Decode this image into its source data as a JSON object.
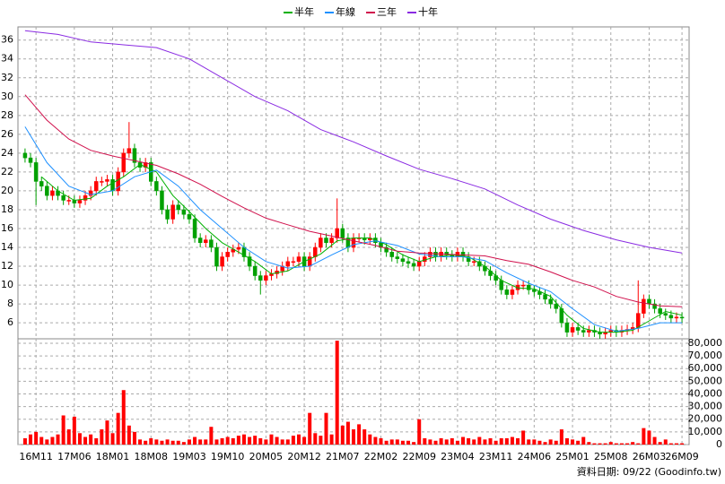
{
  "chart_data": {
    "type": "candlestick",
    "up_color": "#ff0000",
    "down_color": "#00a000",
    "xlim": [
      -1.3,
      121.3
    ],
    "xticks": [
      {
        "value": 2,
        "label": "16M11"
      },
      {
        "value": 9,
        "label": "17M06"
      },
      {
        "value": 16,
        "label": "18M01"
      },
      {
        "value": 23,
        "label": "18M08"
      },
      {
        "value": 30,
        "label": "19M03"
      },
      {
        "value": 37,
        "label": "19M10"
      },
      {
        "value": 44,
        "label": "20M05"
      },
      {
        "value": 51,
        "label": "20M12"
      },
      {
        "value": 58,
        "label": "21M07"
      },
      {
        "value": 65,
        "label": "22M02"
      },
      {
        "value": 72,
        "label": "22M09"
      },
      {
        "value": 79,
        "label": "23M04"
      },
      {
        "value": 86,
        "label": "23M11"
      },
      {
        "value": 93,
        "label": "24M06"
      },
      {
        "value": 100,
        "label": "25M01"
      },
      {
        "value": 107,
        "label": "25M08"
      },
      {
        "value": 114,
        "label": "26M03"
      },
      {
        "value": 120,
        "label": "26M09"
      }
    ],
    "ylim": [
      4.3,
      37.4
    ],
    "yticks": [
      6,
      8,
      10,
      12,
      14,
      16,
      18,
      20,
      22,
      24,
      26,
      28,
      30,
      32,
      34,
      36
    ],
    "grid": true,
    "candles": {
      "open": [
        24,
        23.5,
        23,
        21,
        20.5,
        19.5,
        20,
        19.5,
        19,
        19,
        18.7,
        19,
        19.5,
        20,
        21,
        21,
        21.2,
        20,
        22,
        24,
        24.5,
        23,
        22.5,
        23,
        21,
        20,
        18,
        17,
        18.5,
        18,
        17.5,
        17,
        15,
        14.5,
        14.8,
        14,
        12,
        13,
        13.5,
        13.8,
        14,
        13,
        12,
        11,
        10.5,
        11,
        11.2,
        11.5,
        12,
        12.5,
        12.5,
        13,
        12,
        13,
        14,
        15,
        14.5,
        15,
        16,
        15,
        14,
        15,
        15,
        14.8,
        15,
        14.5,
        14,
        13.5,
        13,
        12.8,
        12.5,
        12.3,
        12,
        12.5,
        13,
        13.5,
        13,
        13.5,
        13.2,
        13,
        13.5,
        13,
        12.5,
        12.5,
        12,
        11.5,
        11,
        10.5,
        9.5,
        9,
        9.5,
        10,
        10,
        9.5,
        9.3,
        9,
        8.5,
        8,
        7.5,
        6,
        5,
        5.5,
        5.2,
        5,
        5.2,
        5,
        4.8,
        5,
        5.2,
        5,
        5.2,
        5.3,
        5.5,
        7,
        8.5,
        8,
        7.5,
        7,
        6.8,
        6.5,
        6.6
      ],
      "high": [
        24.5,
        24,
        23.5,
        21.5,
        21,
        20.5,
        20.5,
        20,
        19.5,
        19.5,
        19.5,
        20,
        20.5,
        21.5,
        21.5,
        21.7,
        21.7,
        22.5,
        24.5,
        27.3,
        25,
        23.5,
        23.5,
        23.5,
        21.5,
        20.5,
        18.5,
        19,
        19,
        18.5,
        18,
        17.5,
        15.5,
        15.3,
        15.3,
        14.5,
        13.5,
        14,
        14.3,
        14.5,
        14.5,
        13.5,
        12.5,
        11.5,
        11.5,
        11.7,
        12,
        12.5,
        13,
        13,
        13.5,
        13.5,
        13.5,
        14.5,
        15.5,
        15.5,
        15.5,
        19.2,
        16.5,
        15.5,
        15.5,
        15.5,
        15.5,
        15.5,
        15.5,
        15,
        14.5,
        14,
        13.5,
        13.3,
        13,
        12.8,
        13,
        13.5,
        14,
        14,
        14,
        14,
        13.7,
        14,
        14,
        13.5,
        13,
        13,
        12.5,
        12,
        11.5,
        11,
        10,
        10,
        10.5,
        10.5,
        10.5,
        10,
        9.8,
        9.5,
        9,
        8.5,
        8,
        6.5,
        6,
        6,
        5.7,
        5.7,
        5.7,
        5.5,
        5.5,
        5.7,
        5.7,
        5.7,
        5.8,
        6,
        10.5,
        9,
        9,
        8.5,
        8,
        7.5,
        7.3,
        7.1,
        7.1
      ],
      "low": [
        23,
        22.5,
        18.5,
        20,
        19,
        19,
        19,
        18.5,
        18.5,
        18.2,
        18.2,
        18.5,
        19,
        19.5,
        20.5,
        20.5,
        19.5,
        19.5,
        21.5,
        23.5,
        22.5,
        22,
        22,
        20.5,
        19.5,
        17.5,
        16.5,
        16.5,
        17.5,
        17,
        16.5,
        14.5,
        14,
        14,
        13.5,
        11.5,
        11.5,
        12.5,
        13,
        13.3,
        12.5,
        11.5,
        10.5,
        9,
        10,
        10.5,
        10.7,
        11,
        11.5,
        12,
        12,
        11.5,
        11.5,
        12.5,
        13.5,
        14,
        14,
        14.5,
        14.5,
        13.5,
        13.5,
        14.5,
        14.3,
        14.3,
        14,
        13.5,
        13,
        12.5,
        12.3,
        12,
        11.8,
        11.5,
        11.5,
        12,
        12.5,
        12.5,
        12.5,
        12.7,
        12.5,
        12.5,
        12.5,
        12,
        12,
        11.5,
        11,
        10.5,
        10,
        9,
        8.5,
        8.5,
        9,
        9.5,
        9,
        8.8,
        8.5,
        8,
        7.5,
        7,
        5.5,
        4.5,
        4.5,
        4.7,
        4.5,
        4.5,
        4.5,
        4.3,
        4.3,
        4.5,
        4.5,
        4.5,
        4.7,
        4.8,
        5,
        6.5,
        7.5,
        7,
        6.5,
        6.3,
        6,
        6,
        6
      ],
      "close": [
        23.5,
        23,
        21,
        20.5,
        19.5,
        20,
        19.5,
        19,
        19,
        18.7,
        19,
        19.5,
        20,
        21,
        21,
        21.2,
        20,
        22,
        24,
        24.5,
        23,
        22.5,
        23,
        21,
        20,
        18,
        17,
        18.5,
        18,
        17.5,
        17,
        15,
        14.5,
        14.8,
        14,
        12,
        13,
        13.5,
        13.8,
        14,
        13,
        12,
        11,
        10.5,
        11,
        11.2,
        11.5,
        12,
        12.5,
        12.5,
        13,
        12,
        13,
        14,
        15,
        14.5,
        15,
        16,
        15,
        14,
        15,
        15,
        14.8,
        15,
        14.5,
        14,
        13.5,
        13,
        12.8,
        12.5,
        12.3,
        12,
        12.5,
        13,
        13.5,
        13,
        13.5,
        13.2,
        13,
        13.5,
        13,
        12.5,
        12.5,
        12,
        11.5,
        11,
        10.5,
        9.5,
        9,
        9.5,
        10,
        10,
        9.5,
        9.3,
        9,
        8.5,
        8,
        7.5,
        6,
        5,
        5.5,
        5.2,
        5,
        5.2,
        5,
        4.8,
        5,
        5.2,
        5,
        5.2,
        5.3,
        5.5,
        7,
        8.5,
        8,
        7.5,
        7,
        6.8,
        6.5,
        6.6,
        6.5
      ]
    },
    "series": [
      {
        "name": "半年",
        "color": "#00b000",
        "x": [
          3,
          6,
          9,
          12,
          15,
          18,
          21,
          24,
          27,
          30,
          33,
          36,
          39,
          42,
          45,
          48,
          51,
          54,
          57,
          60,
          63,
          66,
          69,
          72,
          75,
          78,
          81,
          84,
          87,
          90,
          93,
          96,
          99,
          102,
          105,
          108,
          111,
          114,
          117,
          120
        ],
        "values": [
          21.5,
          20,
          19,
          19.2,
          20.5,
          21.5,
          22.8,
          22,
          19.5,
          17.8,
          16,
          14.5,
          13.5,
          12.5,
          11.2,
          11.5,
          12.5,
          13.3,
          14.7,
          15,
          15,
          14.3,
          13.2,
          12.5,
          13,
          13.2,
          13,
          12,
          10.5,
          9.7,
          9.6,
          8.8,
          6.8,
          5.4,
          5,
          5,
          5.2,
          6.2,
          7.2,
          6.8
        ]
      },
      {
        "name": "年線",
        "color": "#1e90ff",
        "x": [
          0,
          4,
          8,
          12,
          16,
          20,
          24,
          28,
          32,
          36,
          40,
          44,
          48,
          52,
          56,
          60,
          64,
          68,
          72,
          76,
          80,
          84,
          88,
          92,
          96,
          100,
          104,
          108,
          112,
          116,
          120
        ],
        "values": [
          26.8,
          23,
          20.5,
          19.6,
          20,
          21.5,
          22.2,
          20.5,
          18,
          16,
          14,
          12.5,
          11.8,
          12,
          13.2,
          14.3,
          14.7,
          14.2,
          13.3,
          13,
          13,
          12.6,
          11.3,
          10.2,
          9.3,
          7.5,
          5.8,
          5.1,
          5.4,
          6,
          6
        ]
      },
      {
        "name": "三年",
        "color": "#d0104c",
        "x": [
          0,
          4,
          8,
          12,
          16,
          20,
          24,
          28,
          32,
          36,
          40,
          44,
          48,
          52,
          56,
          60,
          64,
          68,
          72,
          76,
          80,
          84,
          88,
          92,
          96,
          100,
          104,
          108,
          112,
          116,
          120
        ],
        "values": [
          30.2,
          27.5,
          25.5,
          24.3,
          23.7,
          23.2,
          22.7,
          21.8,
          20.7,
          19.4,
          18.2,
          17.1,
          16.4,
          15.7,
          15.2,
          14.7,
          14.2,
          13.6,
          13.4,
          13.3,
          13.2,
          13.1,
          12.6,
          12.2,
          11.4,
          10.5,
          9.8,
          8.8,
          8.2,
          7.8,
          7.7
        ]
      },
      {
        "name": "十年",
        "color": "#8a2be2",
        "x": [
          0,
          6,
          12,
          18,
          24,
          30,
          36,
          42,
          48,
          54,
          60,
          66,
          72,
          78,
          84,
          90,
          96,
          102,
          108,
          114,
          120
        ],
        "values": [
          37,
          36.6,
          35.8,
          35.5,
          35.2,
          34,
          32,
          30,
          28.5,
          26.5,
          25.2,
          23.7,
          22.3,
          21.3,
          20.2,
          18.5,
          17,
          15.8,
          14.8,
          14,
          13.4
        ]
      }
    ],
    "volume": {
      "color": "#ff0000",
      "ylim": [
        0,
        83500
      ],
      "yticks": [
        0,
        {
          "value": 10000,
          "label": "10,000"
        },
        {
          "value": 20000,
          "label": "20,000"
        },
        {
          "value": 30000,
          "label": "30,000"
        },
        {
          "value": 40000,
          "label": "40,000"
        },
        {
          "value": 50000,
          "label": "50,000"
        },
        {
          "value": 60000,
          "label": "60,000"
        },
        {
          "value": 70000,
          "label": "70,000"
        },
        {
          "value": 80000,
          "label": "80,000"
        }
      ],
      "values": [
        5000,
        8000,
        10000,
        6000,
        4000,
        6000,
        8000,
        23000,
        12000,
        22000,
        9000,
        6000,
        8000,
        5000,
        12000,
        19000,
        9000,
        25000,
        43000,
        15000,
        10000,
        4000,
        3000,
        5000,
        4000,
        3000,
        4000,
        3000,
        3000,
        2000,
        4000,
        6000,
        4000,
        4000,
        14000,
        4000,
        5000,
        6000,
        5000,
        7000,
        8000,
        6000,
        7000,
        5000,
        4000,
        8000,
        6000,
        4000,
        4000,
        7000,
        8000,
        6000,
        25000,
        9000,
        7000,
        25000,
        8000,
        82000,
        15000,
        18000,
        12000,
        16000,
        12000,
        8000,
        6000,
        5000,
        3000,
        4000,
        4000,
        3000,
        3000,
        2000,
        20000,
        5000,
        4000,
        3000,
        5000,
        4000,
        5000,
        3000,
        6000,
        5000,
        4000,
        6000,
        4000,
        5000,
        3000,
        5000,
        5000,
        6000,
        5000,
        11000,
        4000,
        4000,
        3000,
        2000,
        4000,
        3000,
        12000,
        5000,
        4000,
        3000,
        6000,
        2000,
        1000,
        1000,
        1000,
        2000,
        1000,
        1000,
        1000,
        2000,
        1000,
        13000,
        11000,
        6000,
        2000,
        4000,
        1000,
        1000,
        1000
      ]
    },
    "footer": "資料日期: 09/22 (Goodinfo.tw)"
  }
}
